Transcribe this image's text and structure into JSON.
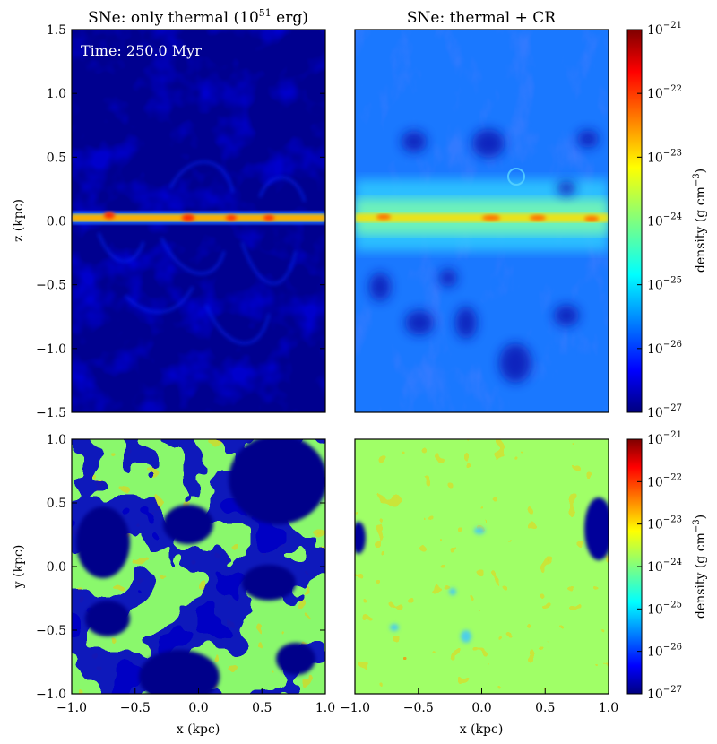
{
  "chart_data": [
    {
      "type": "heatmap",
      "panel": "edge-on, SNe only thermal",
      "title": "SNe: only thermal (10",
      "title_sup": "51",
      "title_tail": " erg)",
      "annotation": "Time: 250.0 Myr",
      "xlabel": "",
      "ylabel": "z (kpc)",
      "xlim": [
        -1.0,
        1.0
      ],
      "ylim": [
        -1.5,
        1.5
      ],
      "yticks": [
        "−1.5",
        "−1.0",
        "−0.5",
        "0.0",
        "0.5",
        "1.0",
        "1.5"
      ],
      "yticks_values": [
        -1.5,
        -1.0,
        -0.5,
        0.0,
        0.5,
        1.0,
        1.5
      ],
      "colormap": "jet",
      "log_scale": true,
      "clim_exponent": [
        -27,
        -21
      ]
    },
    {
      "type": "heatmap",
      "panel": "edge-on, SNe thermal + CR",
      "title": "SNe: thermal + CR",
      "xlabel": "",
      "xlim": [
        -1.0,
        1.0
      ],
      "ylim": [
        -1.5,
        1.5
      ],
      "colormap": "jet",
      "log_scale": true,
      "clim_exponent": [
        -27,
        -21
      ],
      "colorbar": {
        "label": "density  (g cm",
        "label_sup": "−3",
        "label_tail": ")",
        "ticks_base": "10",
        "tick_exponents": [
          "−27",
          "−26",
          "−25",
          "−24",
          "−23",
          "−22",
          "−21"
        ]
      }
    },
    {
      "type": "heatmap",
      "panel": "face-on, SNe only thermal",
      "xlabel": "x (kpc)",
      "ylabel": "y (kpc)",
      "xlim": [
        -1.0,
        1.0
      ],
      "ylim": [
        -1.0,
        1.0
      ],
      "xticks": [
        "−1.0",
        "−0.5",
        "0.0",
        "0.5",
        "1.0"
      ],
      "xticks_values": [
        -1.0,
        -0.5,
        0.0,
        0.5,
        1.0
      ],
      "yticks": [
        "−1.0",
        "−0.5",
        "0.0",
        "0.5",
        "1.0"
      ],
      "yticks_values": [
        -1.0,
        -0.5,
        0.0,
        0.5,
        1.0
      ],
      "colormap": "jet",
      "log_scale": true,
      "clim_exponent": [
        -27,
        -21
      ]
    },
    {
      "type": "heatmap",
      "panel": "face-on, SNe thermal + CR",
      "xlabel": "x (kpc)",
      "xlim": [
        -1.0,
        1.0
      ],
      "ylim": [
        -1.0,
        1.0
      ],
      "xticks": [
        "−1.0",
        "−0.5",
        "0.0",
        "0.5",
        "1.0"
      ],
      "xticks_values": [
        -1.0,
        -0.5,
        0.0,
        0.5,
        1.0
      ],
      "colormap": "jet",
      "log_scale": true,
      "clim_exponent": [
        -27,
        -21
      ],
      "colorbar": {
        "label": "density  (g cm",
        "label_sup": "−3",
        "label_tail": ")",
        "ticks_base": "10",
        "tick_exponents": [
          "−27",
          "−26",
          "−25",
          "−24",
          "−23",
          "−22",
          "−21"
        ]
      }
    }
  ]
}
